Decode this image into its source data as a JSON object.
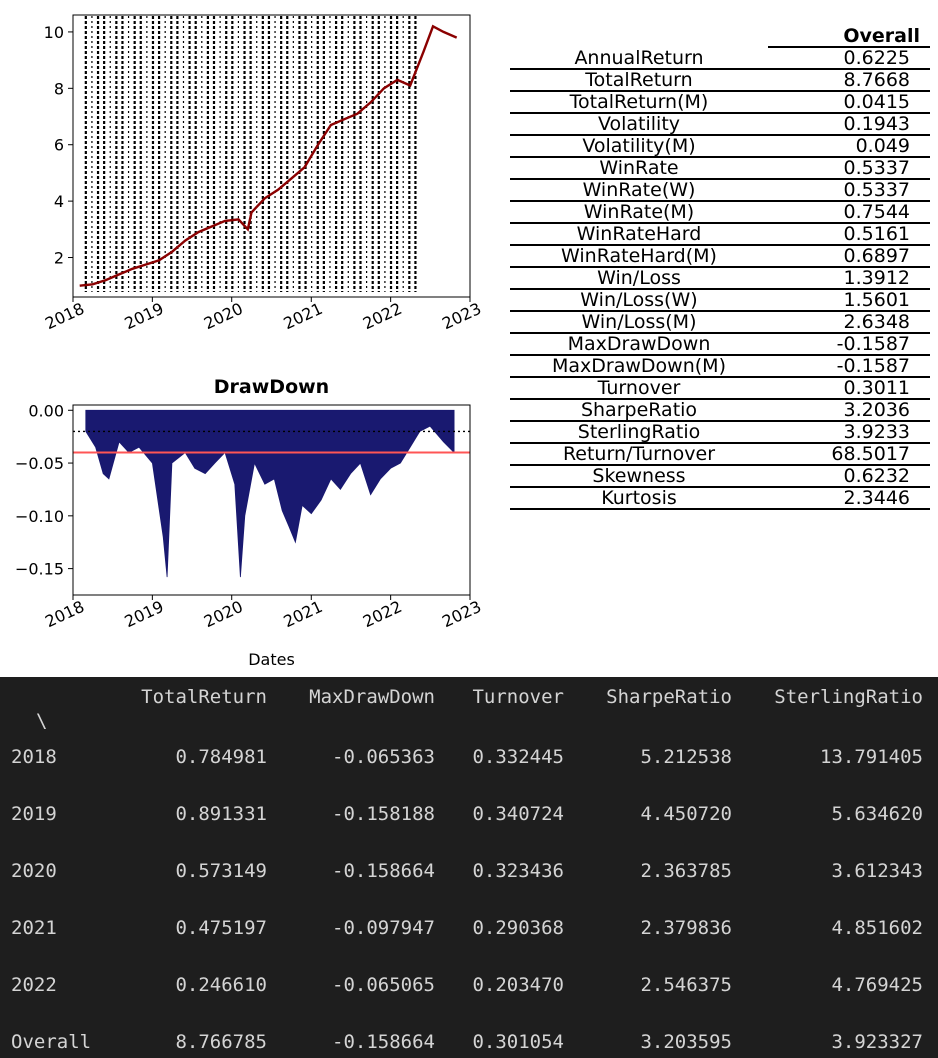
{
  "equity_chart": {
    "chart_data": {
      "type": "line",
      "title": "",
      "xlabel": "",
      "ylabel": "",
      "x_ticks": [
        "2018",
        "2019",
        "2020",
        "2021",
        "2022",
        "2023"
      ],
      "y_ticks": [
        2,
        4,
        6,
        8,
        10
      ],
      "xlim": [
        "2018-01-01",
        "2023-01-01"
      ],
      "ylim": [
        0.6,
        10.6
      ],
      "line_color": "#8b0000",
      "vline_color": "#000000",
      "series": [
        {
          "x": [
            "2018-02-01",
            "2018-04-01",
            "2018-06-01",
            "2018-08-01",
            "2018-10-01",
            "2018-12-01",
            "2019-02-01",
            "2019-04-01",
            "2019-06-01",
            "2019-08-01",
            "2019-10-01",
            "2019-12-01",
            "2020-02-01",
            "2020-03-15",
            "2020-04-01",
            "2020-06-01",
            "2020-08-01",
            "2020-10-01",
            "2020-12-01",
            "2021-02-01",
            "2021-04-01",
            "2021-06-01",
            "2021-08-01",
            "2021-10-01",
            "2021-12-01",
            "2022-02-01",
            "2022-04-01",
            "2022-06-01",
            "2022-07-15",
            "2022-09-01",
            "2022-11-01"
          ],
          "values": [
            1.0,
            1.05,
            1.2,
            1.4,
            1.6,
            1.75,
            1.9,
            2.2,
            2.6,
            2.9,
            3.1,
            3.3,
            3.35,
            3.0,
            3.6,
            4.1,
            4.4,
            4.8,
            5.2,
            6.0,
            6.7,
            6.9,
            7.1,
            7.5,
            8.0,
            8.3,
            8.1,
            9.3,
            10.2,
            10.0,
            9.8
          ]
        }
      ]
    }
  },
  "drawdown_chart": {
    "chart_data": {
      "type": "area",
      "title": "DrawDown",
      "xlabel": "Dates",
      "ylabel": "",
      "x_ticks": [
        "2018",
        "2019",
        "2020",
        "2021",
        "2022",
        "2023"
      ],
      "y_ticks": [
        "0.00",
        "−0.05",
        "−0.10",
        "−0.15"
      ],
      "y_tick_values": [
        0.0,
        -0.05,
        -0.1,
        -0.15
      ],
      "xlim": [
        "2018-01-01",
        "2023-01-01"
      ],
      "ylim": [
        -0.175,
        0.005
      ],
      "fill_color": "#191970",
      "red_line": -0.04,
      "red_line_color": "#ff5555",
      "dotted_line": -0.02,
      "series": [
        {
          "x": [
            "2018-03-01",
            "2018-04-15",
            "2018-05-20",
            "2018-06-15",
            "2018-08-01",
            "2018-09-15",
            "2018-11-01",
            "2019-01-01",
            "2019-02-20",
            "2019-03-10",
            "2019-04-01",
            "2019-06-01",
            "2019-07-15",
            "2019-09-01",
            "2019-10-15",
            "2019-12-01",
            "2020-01-15",
            "2020-02-10",
            "2020-03-01",
            "2020-04-15",
            "2020-06-01",
            "2020-07-15",
            "2020-08-20",
            "2020-09-20",
            "2020-10-20",
            "2020-11-20",
            "2021-01-01",
            "2021-02-15",
            "2021-04-01",
            "2021-05-15",
            "2021-07-01",
            "2021-08-15",
            "2021-10-01",
            "2021-11-15",
            "2022-01-01",
            "2022-02-15",
            "2022-04-01",
            "2022-05-15",
            "2022-07-01",
            "2022-09-01",
            "2022-10-20"
          ],
          "values": [
            -0.02,
            -0.035,
            -0.06,
            -0.065,
            -0.03,
            -0.04,
            -0.035,
            -0.05,
            -0.12,
            -0.158,
            -0.05,
            -0.04,
            -0.055,
            -0.06,
            -0.05,
            -0.04,
            -0.07,
            -0.158,
            -0.1,
            -0.05,
            -0.07,
            -0.065,
            -0.095,
            -0.11,
            -0.125,
            -0.09,
            -0.098,
            -0.085,
            -0.065,
            -0.075,
            -0.06,
            -0.05,
            -0.08,
            -0.065,
            -0.055,
            -0.05,
            -0.035,
            -0.02,
            -0.015,
            -0.03,
            -0.04
          ]
        }
      ]
    }
  },
  "stats_table": {
    "header": "Overall",
    "rows": [
      {
        "name": "AnnualReturn",
        "value": "0.6225"
      },
      {
        "name": "TotalReturn",
        "value": "8.7668"
      },
      {
        "name": "TotalReturn(M)",
        "value": "0.0415"
      },
      {
        "name": "Volatility",
        "value": "0.1943"
      },
      {
        "name": "Volatility(M)",
        "value": "0.049"
      },
      {
        "name": "WinRate",
        "value": "0.5337"
      },
      {
        "name": "WinRate(W)",
        "value": "0.5337"
      },
      {
        "name": "WinRate(M)",
        "value": "0.7544"
      },
      {
        "name": "WinRateHard",
        "value": "0.5161"
      },
      {
        "name": "WinRateHard(M)",
        "value": "0.6897"
      },
      {
        "name": "Win/Loss",
        "value": "1.3912"
      },
      {
        "name": "Win/Loss(W)",
        "value": "1.5601"
      },
      {
        "name": "Win/Loss(M)",
        "value": "2.6348"
      },
      {
        "name": "MaxDrawDown",
        "value": "-0.1587"
      },
      {
        "name": "MaxDrawDown(M)",
        "value": "-0.1587"
      },
      {
        "name": "Turnover",
        "value": "0.3011"
      },
      {
        "name": "SharpeRatio",
        "value": "3.2036"
      },
      {
        "name": "SterlingRatio",
        "value": "3.9233"
      },
      {
        "name": "Return/Turnover",
        "value": "68.5017"
      },
      {
        "name": "Skewness",
        "value": "0.6232"
      },
      {
        "name": "Kurtosis",
        "value": "2.3446"
      }
    ]
  },
  "console_table": {
    "columns": [
      "TotalReturn",
      "MaxDrawDown",
      "Turnover",
      "SharpeRatio",
      "SterlingRatio"
    ],
    "index_marker": "\\",
    "rows": [
      {
        "index": "2018",
        "values": [
          "0.784981",
          "-0.065363",
          "0.332445",
          "5.212538",
          "13.791405"
        ]
      },
      {
        "index": "2019",
        "values": [
          "0.891331",
          "-0.158188",
          "0.340724",
          "4.450720",
          "5.634620"
        ]
      },
      {
        "index": "2020",
        "values": [
          "0.573149",
          "-0.158664",
          "0.323436",
          "2.363785",
          "3.612343"
        ]
      },
      {
        "index": "2021",
        "values": [
          "0.475197",
          "-0.097947",
          "0.290368",
          "2.379836",
          "4.851602"
        ]
      },
      {
        "index": "2022",
        "values": [
          "0.246610",
          "-0.065065",
          "0.203470",
          "2.546375",
          "4.769425"
        ]
      },
      {
        "index": "Overall",
        "values": [
          "8.766785",
          "-0.158664",
          "0.301054",
          "3.203595",
          "3.923327"
        ]
      }
    ]
  }
}
